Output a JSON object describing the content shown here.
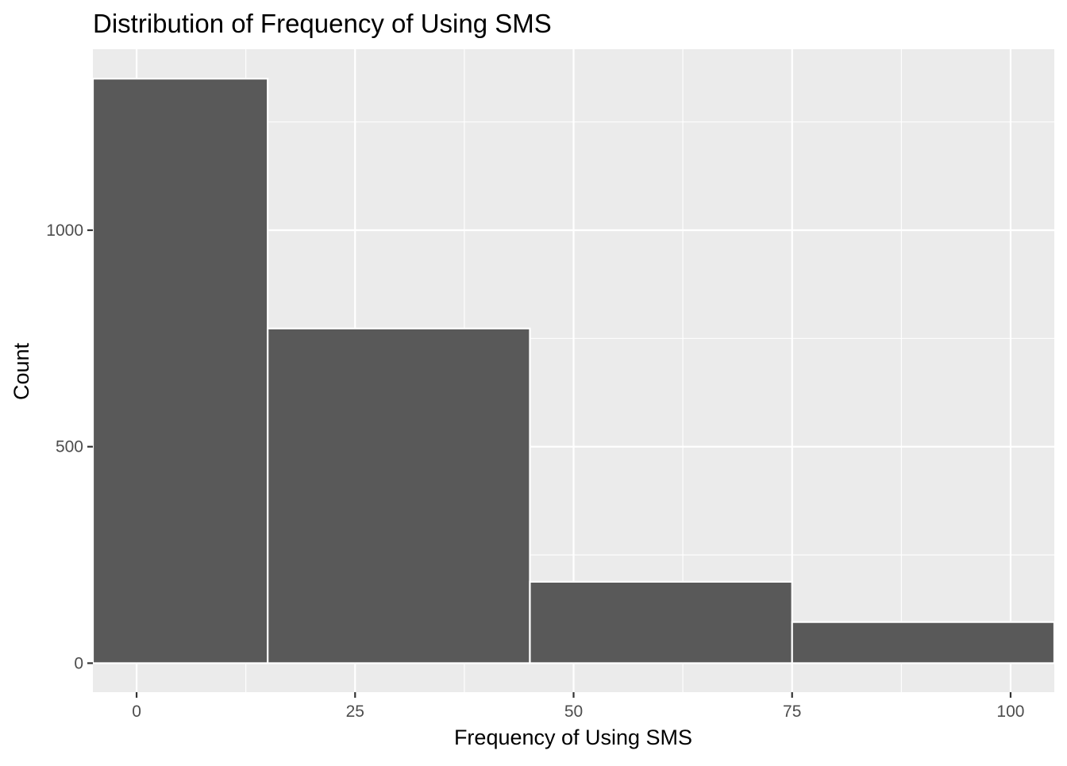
{
  "chart_data": {
    "type": "bar",
    "title": "Distribution of Frequency of Using SMS",
    "xlabel": "Frequency of Using SMS",
    "ylabel": "Count",
    "bins": [
      {
        "x0": -15,
        "x1": 15,
        "count": 1350
      },
      {
        "x0": 15,
        "x1": 45,
        "count": 773
      },
      {
        "x0": 45,
        "x1": 75,
        "count": 188
      },
      {
        "x0": 75,
        "x1": 105,
        "count": 95
      }
    ],
    "xlim": [
      -5,
      105
    ],
    "ylim": [
      -67,
      1418
    ],
    "x_ticks": [
      0,
      25,
      50,
      75,
      100
    ],
    "y_ticks": [
      0,
      500,
      1000
    ],
    "grid": true,
    "colors": {
      "panel_background": "#ebebeb",
      "grid": "#ffffff",
      "bar_fill": "#595959",
      "bar_outline": "#ffffff",
      "tick_label": "#4d4d4d",
      "tick_mark": "#333333"
    }
  }
}
